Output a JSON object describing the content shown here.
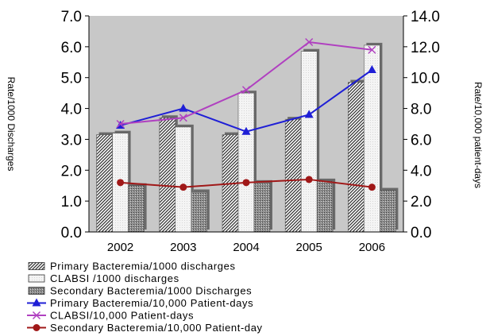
{
  "chart_data": {
    "type": "bar",
    "categories": [
      "2002",
      "2003",
      "2004",
      "2005",
      "2006"
    ],
    "y_left": {
      "label": "Rate/1000 Discharges",
      "range": [
        0,
        7
      ],
      "ticks": [
        "0.0",
        "1.0",
        "2.0",
        "3.0",
        "4.0",
        "5.0",
        "6.0",
        "7.0"
      ]
    },
    "y_right": {
      "label": "Rate/10,000 patient-days",
      "range": [
        0,
        14
      ],
      "ticks": [
        "0.0",
        "2.0",
        "4.0",
        "6.0",
        "8.0",
        "10.0",
        "12.0",
        "14.0"
      ]
    },
    "plot_background": "#c8c8c8",
    "grid": false,
    "legend_position": "bottom",
    "bar_series": [
      {
        "name": "Primary Bacteremia/1000 discharges",
        "values": [
          3.15,
          3.7,
          3.15,
          3.65,
          4.85
        ],
        "pattern": "diagonal-hatch"
      },
      {
        "name": "CLABSI /1000 discharges",
        "values": [
          3.2,
          3.4,
          4.5,
          5.85,
          6.05
        ],
        "pattern": "light-fill"
      },
      {
        "name": "Secondary Bacteremia/1000 Discharges",
        "values": [
          1.5,
          1.3,
          1.6,
          1.65,
          1.35
        ],
        "pattern": "dot-fill"
      }
    ],
    "line_series": [
      {
        "name": "Primary Bacteremia/10,000 Patient-days",
        "values": [
          6.9,
          8.0,
          6.5,
          7.6,
          10.5
        ],
        "color": "#1f1fd6",
        "marker": "triangle"
      },
      {
        "name": "CLABSI/10,000 Patient-days",
        "values": [
          7.0,
          7.4,
          9.2,
          12.3,
          11.8
        ],
        "color": "#b040c0",
        "marker": "x"
      },
      {
        "name": "Secondary Bacteremia/10,000 Patient-day",
        "values": [
          3.2,
          2.9,
          3.2,
          3.4,
          2.9
        ],
        "color": "#a01818",
        "marker": "circle"
      }
    ]
  }
}
